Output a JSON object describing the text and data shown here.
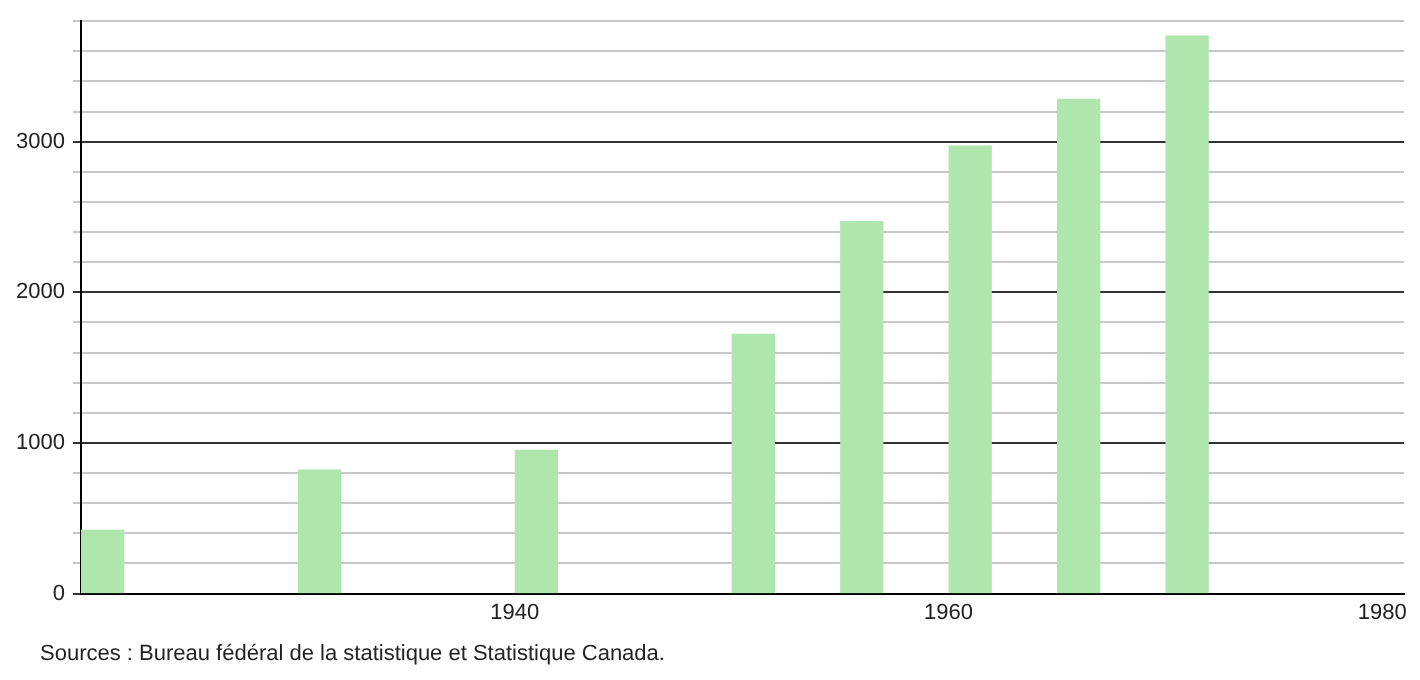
{
  "chart_data": {
    "type": "bar",
    "x": [
      1921,
      1931,
      1941,
      1951,
      1956,
      1961,
      1966,
      1971
    ],
    "values": [
      420,
      820,
      950,
      1720,
      2470,
      2970,
      3280,
      3700
    ],
    "color": "#aee6ae",
    "xlim": [
      1920,
      1981
    ],
    "xticks": [
      1940,
      1960,
      1980
    ],
    "ylim": [
      0,
      3800
    ],
    "yticks": [
      0,
      {
        "value": 200,
        "label": null
      },
      {
        "value": 400,
        "label": null
      },
      {
        "value": 600,
        "label": null
      },
      {
        "value": 800,
        "label": null
      },
      1000,
      {
        "value": 1200,
        "label": null
      },
      {
        "value": 1400,
        "label": null
      },
      {
        "value": 1600,
        "label": null
      },
      {
        "value": 1800,
        "label": null
      },
      2000,
      {
        "value": 2200,
        "label": null
      },
      {
        "value": 2400,
        "label": null
      },
      {
        "value": 2600,
        "label": null
      },
      {
        "value": 2800,
        "label": null
      },
      3000,
      {
        "value": 3200,
        "label": null
      },
      {
        "value": 3400,
        "label": null
      },
      {
        "value": 3600,
        "label": null
      },
      {
        "value": 3800,
        "label": null
      }
    ],
    "grid": "y",
    "legend": false,
    "annotations": [
      "Sources : Bureau fédéral de la statistique et Statistique Canada."
    ]
  }
}
